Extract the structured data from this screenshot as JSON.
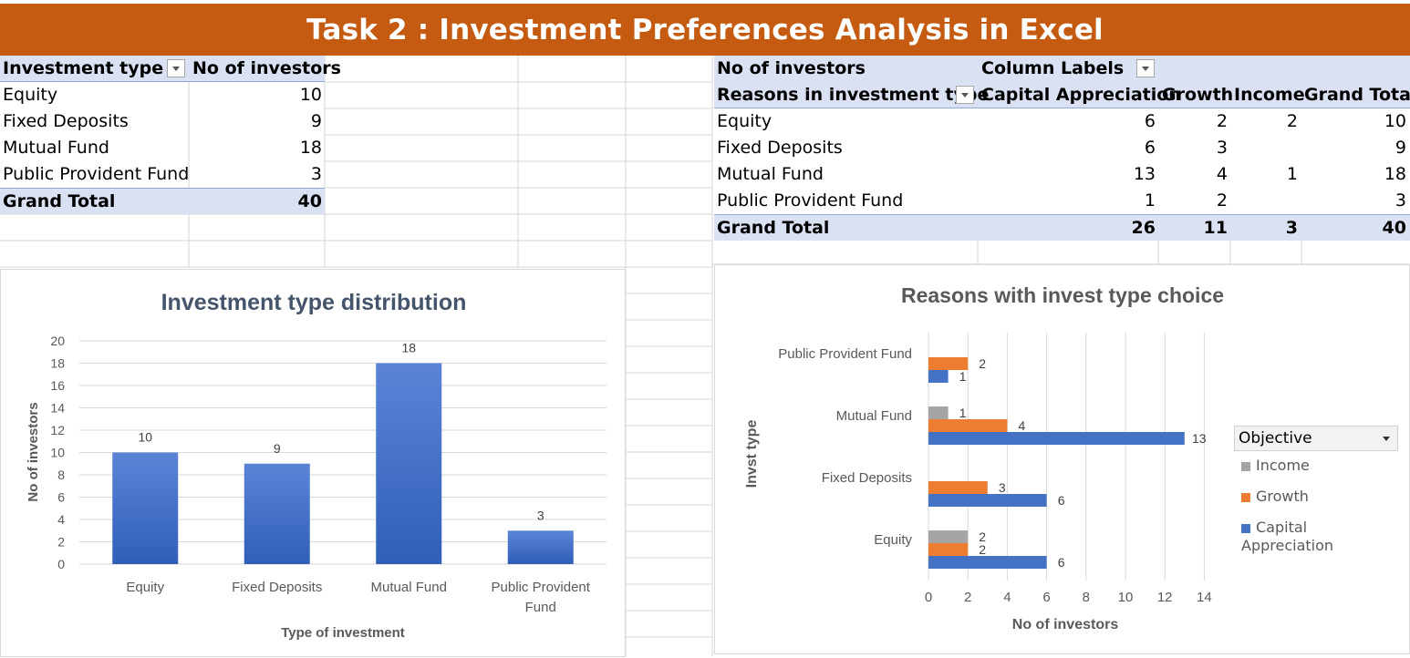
{
  "title": "Task 2 : Investment Preferences Analysis in Excel",
  "pivot1": {
    "headers": [
      "Investment type",
      "No of investors"
    ],
    "rows": [
      {
        "label": "Equity",
        "value": "10"
      },
      {
        "label": "Fixed Deposits",
        "value": "9"
      },
      {
        "label": "Mutual Fund",
        "value": "18"
      },
      {
        "label": "Public Provident Fund",
        "value": "3"
      }
    ],
    "total": {
      "label": "Grand Total",
      "value": "40"
    }
  },
  "pivot2": {
    "top_left": "No of investors",
    "column_labels": "Column Labels",
    "row_header": "Reasons in investment type",
    "columns": [
      "Capital Appreciation",
      "Growth",
      "Income",
      "Grand Total"
    ],
    "rows": [
      {
        "label": "Equity",
        "values": [
          "6",
          "2",
          "2",
          "10"
        ]
      },
      {
        "label": "Fixed Deposits",
        "values": [
          "6",
          "3",
          "",
          "9"
        ]
      },
      {
        "label": "Mutual Fund",
        "values": [
          "13",
          "4",
          "1",
          "18"
        ]
      },
      {
        "label": "Public Provident Fund",
        "values": [
          "1",
          "2",
          "",
          "3"
        ]
      }
    ],
    "total": {
      "label": "Grand Total",
      "values": [
        "26",
        "11",
        "3",
        "40"
      ]
    }
  },
  "colors": {
    "title_bg": "#c55a11",
    "header_bg": "#d9e1f2",
    "bar_blue": "#4472c4",
    "orange": "#ed7d31",
    "gray": "#a5a5a5"
  },
  "chart_data": [
    {
      "type": "bar",
      "title": "Investment type distribution",
      "xlabel": "Type of investment",
      "ylabel": "No of investors",
      "categories": [
        "Equity",
        "Fixed Deposits",
        "Mutual Fund",
        "Public Provident Fund"
      ],
      "values": [
        10,
        9,
        18,
        3
      ],
      "ylim": [
        0,
        20
      ],
      "yticks": [
        0,
        2,
        4,
        6,
        8,
        10,
        12,
        14,
        16,
        18,
        20
      ],
      "grid": true,
      "data_labels": true
    },
    {
      "type": "bar",
      "orientation": "horizontal",
      "title": "Reasons with invest type choice",
      "xlabel": "No of investors",
      "ylabel": "Invst type",
      "categories": [
        "Equity",
        "Fixed Deposits",
        "Mutual Fund",
        "Public Provident Fund"
      ],
      "series": [
        {
          "name": "Capital Appreciation",
          "values": [
            6,
            6,
            13,
            1
          ]
        },
        {
          "name": "Growth",
          "values": [
            2,
            3,
            4,
            2
          ]
        },
        {
          "name": "Income",
          "values": [
            2,
            null,
            1,
            null
          ]
        }
      ],
      "xlim": [
        0,
        14
      ],
      "xticks": [
        0,
        2,
        4,
        6,
        8,
        10,
        12,
        14
      ],
      "grid": true,
      "data_labels": true,
      "legend": {
        "title": "Objective",
        "placement": "right",
        "items": [
          "Income",
          "Growth",
          "Capital Appreciation"
        ]
      }
    }
  ]
}
